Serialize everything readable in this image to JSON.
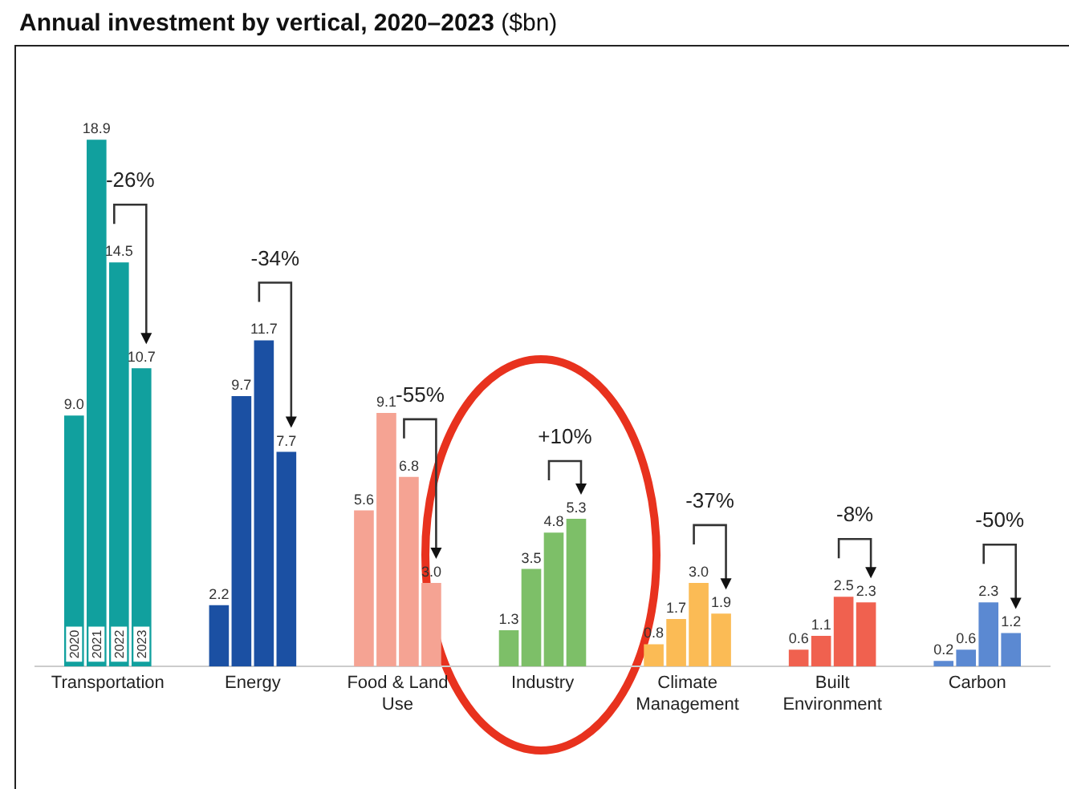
{
  "chart_data": {
    "type": "bar",
    "title": "Annual investment by vertical, 2020–2023 ($bn)",
    "categories": [
      "Transportation",
      "Energy",
      "Food & Land Use",
      "Industry",
      "Climate Management",
      "Built Environment",
      "Carbon"
    ],
    "series": [
      {
        "name": "2020",
        "colors": [
          "#11a09e",
          "#1b50a3",
          "#f5a393",
          "#7dbf68",
          "#fbbb55",
          "#f0614f",
          "#5b89d2"
        ],
        "values": [
          9.0,
          2.2,
          5.6,
          1.3,
          0.8,
          0.6,
          0.2
        ],
        "value_labels": [
          "9.0",
          "2.2",
          "5.6",
          "1.3",
          "0.8",
          "0.6",
          "0.2"
        ]
      },
      {
        "name": "2021",
        "colors": [
          "#11a09e",
          "#1b50a3",
          "#f5a393",
          "#7dbf68",
          "#fbbb55",
          "#f0614f",
          "#5b89d2"
        ],
        "values": [
          18.9,
          9.7,
          9.1,
          3.5,
          1.7,
          1.1,
          0.6
        ],
        "value_labels": [
          "18.9",
          "9.7",
          "9.1",
          "3.5",
          "1.7",
          "1.1",
          "0.6"
        ]
      },
      {
        "name": "2022",
        "colors": [
          "#11a09e",
          "#1b50a3",
          "#f5a393",
          "#7dbf68",
          "#fbbb55",
          "#f0614f",
          "#5b89d2"
        ],
        "values": [
          14.5,
          11.7,
          6.8,
          4.8,
          3.0,
          2.5,
          2.3
        ],
        "value_labels": [
          "14.5",
          "11.7",
          "6.8",
          "4.8",
          "3.0",
          "2.5",
          "2.3"
        ]
      },
      {
        "name": "2023",
        "colors": [
          "#11a09e",
          "#1b50a3",
          "#f5a393",
          "#7dbf68",
          "#fbbb55",
          "#f0614f",
          "#5b89d2"
        ],
        "values": [
          10.7,
          7.7,
          3.0,
          5.3,
          1.9,
          2.3,
          1.2
        ],
        "value_labels": [
          "10.7",
          "7.7",
          "3.0",
          "5.3",
          "1.9",
          "2.3",
          "1.2"
        ]
      }
    ],
    "relative": false,
    "legend": false,
    "annotations": [
      "-26%",
      "-34%",
      "-55%",
      "+10%",
      "-37%",
      "-8%",
      "-50%"
    ]
  }
}
